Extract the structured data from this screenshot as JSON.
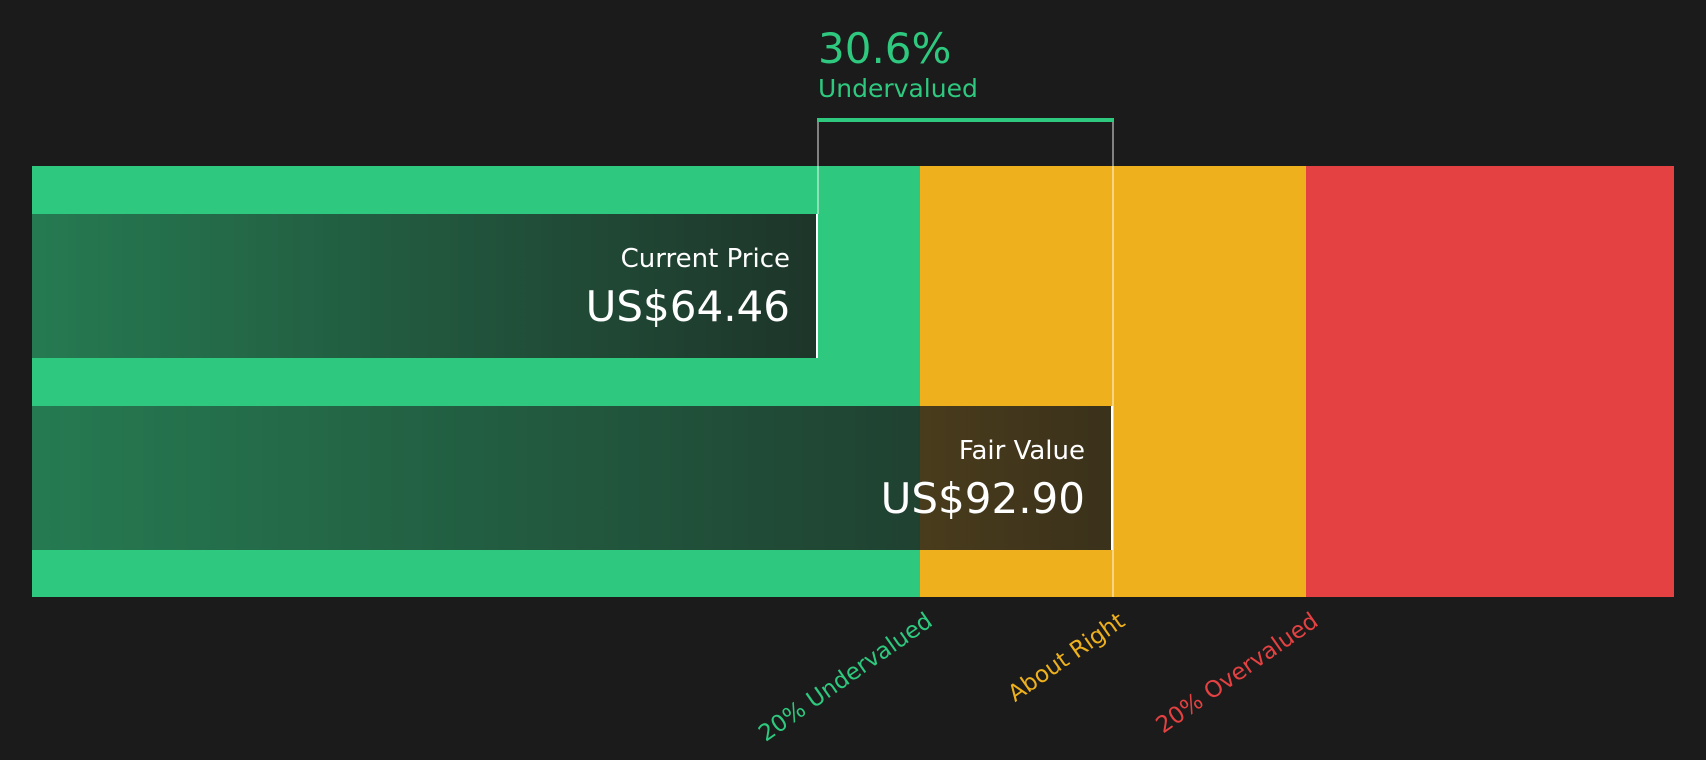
{
  "chart_data": {
    "type": "bar",
    "title": "",
    "current_price": {
      "label": "Current Price",
      "value": 64.46,
      "display": "US$64.46"
    },
    "fair_value": {
      "label": "Fair Value",
      "value": 92.9,
      "display": "US$92.90"
    },
    "difference": {
      "percent": "30.6%",
      "label": "Undervalued"
    },
    "zones": [
      {
        "label": "20% Undervalued",
        "color": "#2ec97f"
      },
      {
        "label": "About Right",
        "color": "#eeb11d"
      },
      {
        "label": "20% Overvalued",
        "color": "#e44142"
      }
    ]
  }
}
